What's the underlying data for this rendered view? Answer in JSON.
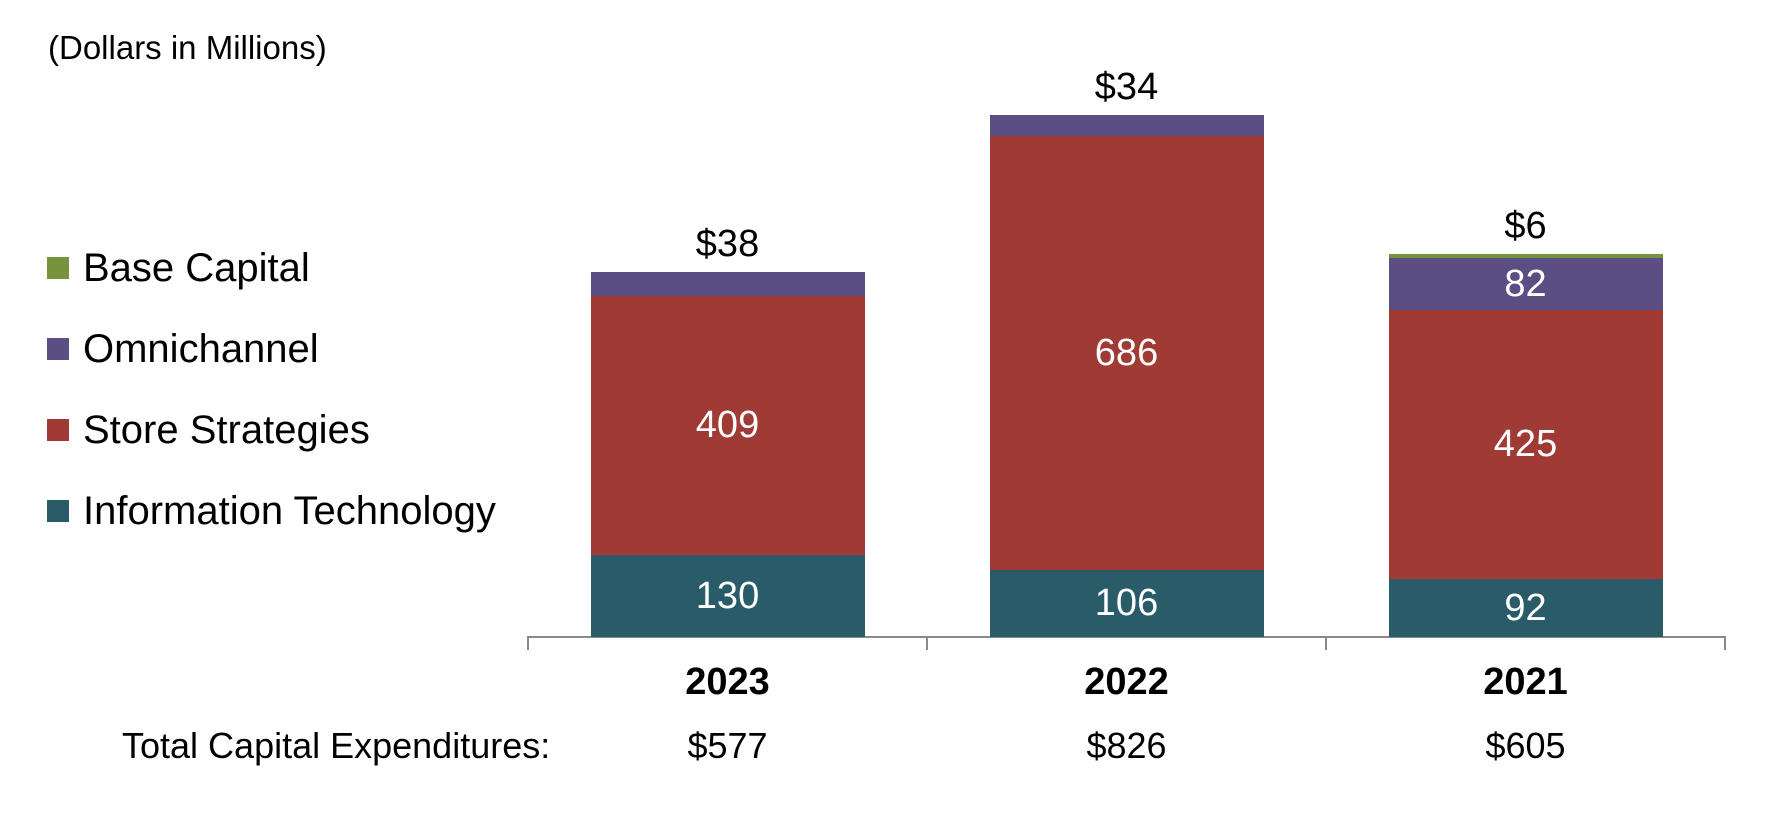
{
  "title": "(Dollars in Millions)",
  "legend": {
    "items": [
      {
        "label": "Base Capital",
        "color": "#76923C"
      },
      {
        "label": "Omnichannel",
        "color": "#5B4E82"
      },
      {
        "label": "Store Strategies",
        "color": "#A03A35"
      },
      {
        "label": "Information Technology",
        "color": "#2A5B69"
      }
    ]
  },
  "totals": {
    "label": "Total Capital Expenditures:",
    "values": [
      "$577",
      "$826",
      "$605"
    ]
  },
  "chart_data": {
    "type": "bar",
    "stacked": true,
    "title": "(Dollars in Millions)",
    "xlabel": "",
    "ylabel": "",
    "grid": false,
    "legend_position": "left",
    "categories": [
      "2023",
      "2022",
      "2021"
    ],
    "series": [
      {
        "name": "Information Technology",
        "color": "#2A5B69",
        "values": [
          130,
          106,
          92
        ]
      },
      {
        "name": "Store Strategies",
        "color": "#A03A35",
        "values": [
          409,
          686,
          425
        ]
      },
      {
        "name": "Omnichannel",
        "color": "#5B4E82",
        "values": [
          38,
          34,
          82
        ]
      },
      {
        "name": "Base Capital",
        "color": "#76923C",
        "values": [
          0,
          0,
          6
        ]
      }
    ],
    "top_labels": [
      "$38",
      "$34",
      "$6"
    ],
    "totals": [
      577,
      826,
      605
    ],
    "axis_line_color": "#898989",
    "inside_label_color": "#FFFFFF"
  }
}
